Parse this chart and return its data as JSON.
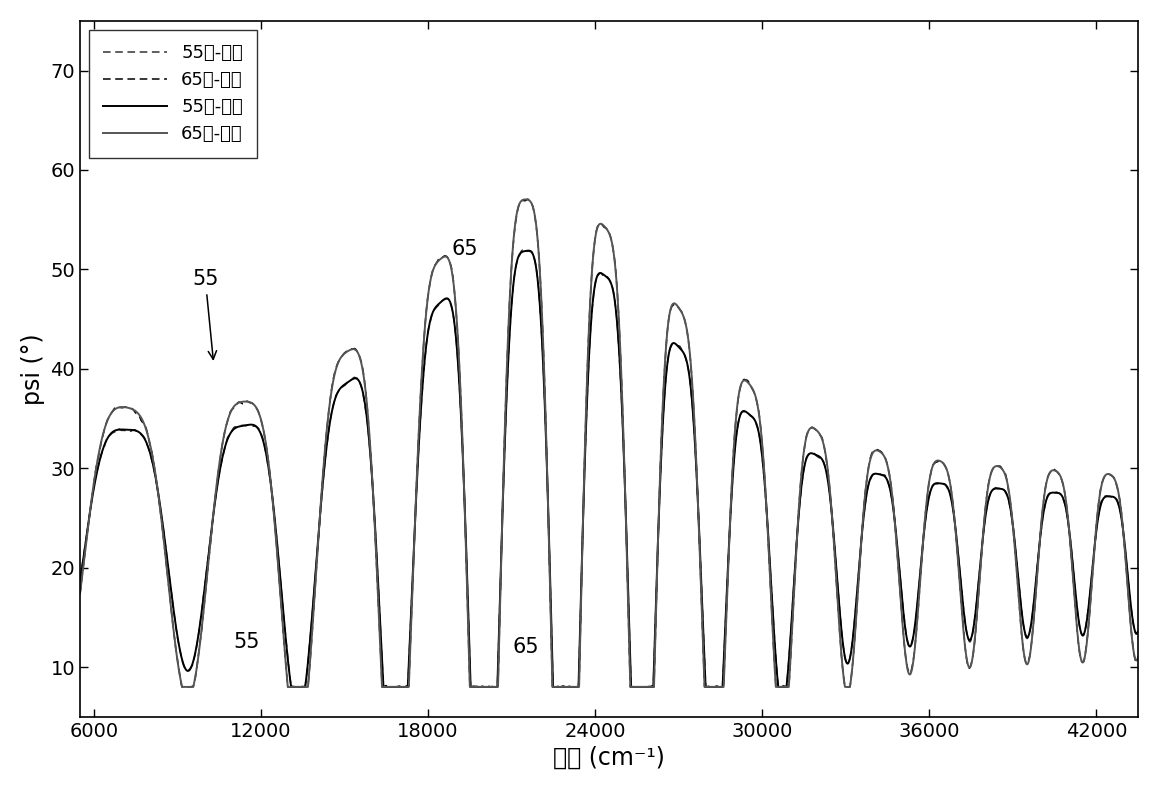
{
  "xlabel": "波数 (cm⁻¹)",
  "ylabel": "psi (°)",
  "xlim": [
    5500,
    43500
  ],
  "ylim": [
    5,
    75
  ],
  "xticks": [
    6000,
    12000,
    18000,
    24000,
    30000,
    36000,
    42000
  ],
  "yticks": [
    10,
    20,
    30,
    40,
    50,
    60,
    70
  ],
  "legend_entries": [
    "55度-测量",
    "65度-测量",
    "55度-计算",
    "65度-计算"
  ],
  "background_color": "#ffffff",
  "fontsize_labels": 17,
  "fontsize_ticks": 14,
  "fontsize_legend": 13,
  "fontsize_annot": 15
}
